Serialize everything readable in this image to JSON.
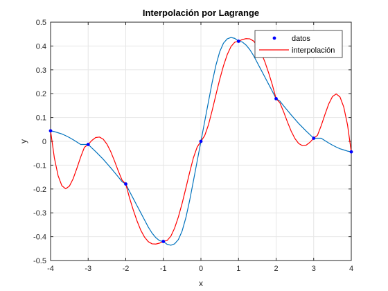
{
  "chart_data": {
    "type": "line",
    "title": "Interpolación por Lagrange",
    "xlabel": "x",
    "ylabel": "y",
    "xlim": [
      -4,
      4
    ],
    "ylim": [
      -0.5,
      0.5
    ],
    "xticks": [
      "-4",
      "-3",
      "-2",
      "-1",
      "0",
      "1",
      "2",
      "3",
      "4"
    ],
    "yticks": [
      "-0.5",
      "-0.4",
      "-0.3",
      "-0.2",
      "-0.1",
      "0",
      "0.1",
      "0.2",
      "0.3",
      "0.4",
      "0.5"
    ],
    "grid": true,
    "legend_position": "top-right",
    "series": [
      {
        "name": "datos",
        "style": "markers",
        "color": "#0000ff",
        "x": [
          -4,
          -3,
          -2,
          -1,
          0,
          1,
          2,
          3,
          4
        ],
        "y": [
          0.044,
          -0.013,
          -0.179,
          -0.42,
          0.0,
          0.42,
          0.179,
          0.013,
          -0.044
        ]
      },
      {
        "name": "interpolación",
        "style": "line",
        "color": "#ff0000",
        "x": [
          -4,
          -3.9,
          -3.8,
          -3.7,
          -3.6,
          -3.5,
          -3.4,
          -3.3,
          -3.2,
          -3.1,
          -3,
          -2.9,
          -2.8,
          -2.7,
          -2.6,
          -2.5,
          -2.4,
          -2.3,
          -2.2,
          -2.1,
          -2,
          -1.9,
          -1.8,
          -1.7,
          -1.6,
          -1.5,
          -1.4,
          -1.3,
          -1.2,
          -1.1,
          -1,
          -0.9,
          -0.8,
          -0.7,
          -0.6,
          -0.5,
          -0.4,
          -0.3,
          -0.2,
          -0.1,
          0,
          0.1,
          0.2,
          0.3,
          0.4,
          0.5,
          0.6,
          0.7,
          0.8,
          0.9,
          1,
          1.1,
          1.2,
          1.3,
          1.4,
          1.5,
          1.6,
          1.7,
          1.8,
          1.9,
          2,
          2.1,
          2.2,
          2.3,
          2.4,
          2.5,
          2.6,
          2.7,
          2.8,
          2.9,
          3,
          3.1,
          3.2,
          3.3,
          3.4,
          3.5,
          3.6,
          3.7,
          3.8,
          3.9,
          4
        ],
        "y": [
          0.044,
          -0.069,
          -0.144,
          -0.186,
          -0.199,
          -0.188,
          -0.157,
          -0.113,
          -0.066,
          -0.025,
          -0.013,
          0.004,
          0.016,
          0.018,
          0.009,
          -0.012,
          -0.043,
          -0.082,
          -0.124,
          -0.162,
          -0.179,
          -0.237,
          -0.288,
          -0.334,
          -0.373,
          -0.402,
          -0.421,
          -0.43,
          -0.431,
          -0.427,
          -0.42,
          -0.416,
          -0.398,
          -0.364,
          -0.317,
          -0.26,
          -0.196,
          -0.13,
          -0.069,
          -0.024,
          0.0,
          0.024,
          0.069,
          0.13,
          0.196,
          0.26,
          0.317,
          0.364,
          0.398,
          0.416,
          0.42,
          0.427,
          0.431,
          0.43,
          0.421,
          0.402,
          0.373,
          0.334,
          0.288,
          0.237,
          0.179,
          0.162,
          0.124,
          0.082,
          0.043,
          0.012,
          -0.009,
          -0.018,
          -0.016,
          -0.004,
          0.013,
          0.025,
          0.066,
          0.113,
          0.157,
          0.188,
          0.199,
          0.186,
          0.144,
          0.069,
          -0.044
        ]
      },
      {
        "name": "",
        "style": "line",
        "color": "#0072bd",
        "x": [
          -4,
          -3.9,
          -3.8,
          -3.7,
          -3.6,
          -3.5,
          -3.4,
          -3.3,
          -3.2,
          -3.1,
          -3,
          -2.9,
          -2.8,
          -2.7,
          -2.6,
          -2.5,
          -2.4,
          -2.3,
          -2.2,
          -2.1,
          -2,
          -1.9,
          -1.8,
          -1.7,
          -1.6,
          -1.5,
          -1.4,
          -1.3,
          -1.2,
          -1.1,
          -1,
          -0.9,
          -0.8,
          -0.7,
          -0.6,
          -0.5,
          -0.4,
          -0.3,
          -0.2,
          -0.1,
          0,
          0.1,
          0.2,
          0.3,
          0.4,
          0.5,
          0.6,
          0.7,
          0.8,
          0.9,
          1,
          1.1,
          1.2,
          1.3,
          1.4,
          1.5,
          1.6,
          1.7,
          1.8,
          1.9,
          2,
          2.1,
          2.2,
          2.3,
          2.4,
          2.5,
          2.6,
          2.7,
          2.8,
          2.9,
          3,
          3.1,
          3.2,
          3.3,
          3.4,
          3.5,
          3.6,
          3.7,
          3.8,
          3.9,
          4
        ],
        "y": [
          0.044,
          0.041,
          0.036,
          0.031,
          0.024,
          0.016,
          0.007,
          -0.003,
          -0.013,
          -0.013,
          -0.013,
          -0.028,
          -0.043,
          -0.059,
          -0.075,
          -0.093,
          -0.111,
          -0.13,
          -0.149,
          -0.169,
          -0.179,
          -0.21,
          -0.24,
          -0.27,
          -0.3,
          -0.33,
          -0.36,
          -0.385,
          -0.404,
          -0.417,
          -0.42,
          -0.432,
          -0.436,
          -0.43,
          -0.412,
          -0.376,
          -0.32,
          -0.248,
          -0.166,
          -0.083,
          0.0,
          0.083,
          0.166,
          0.248,
          0.32,
          0.376,
          0.412,
          0.43,
          0.436,
          0.432,
          0.42,
          0.417,
          0.404,
          0.385,
          0.36,
          0.33,
          0.3,
          0.27,
          0.24,
          0.21,
          0.179,
          0.169,
          0.149,
          0.13,
          0.111,
          0.093,
          0.075,
          0.059,
          0.043,
          0.028,
          0.013,
          0.013,
          0.013,
          0.003,
          -0.007,
          -0.016,
          -0.024,
          -0.031,
          -0.036,
          -0.041,
          -0.044
        ]
      }
    ]
  }
}
